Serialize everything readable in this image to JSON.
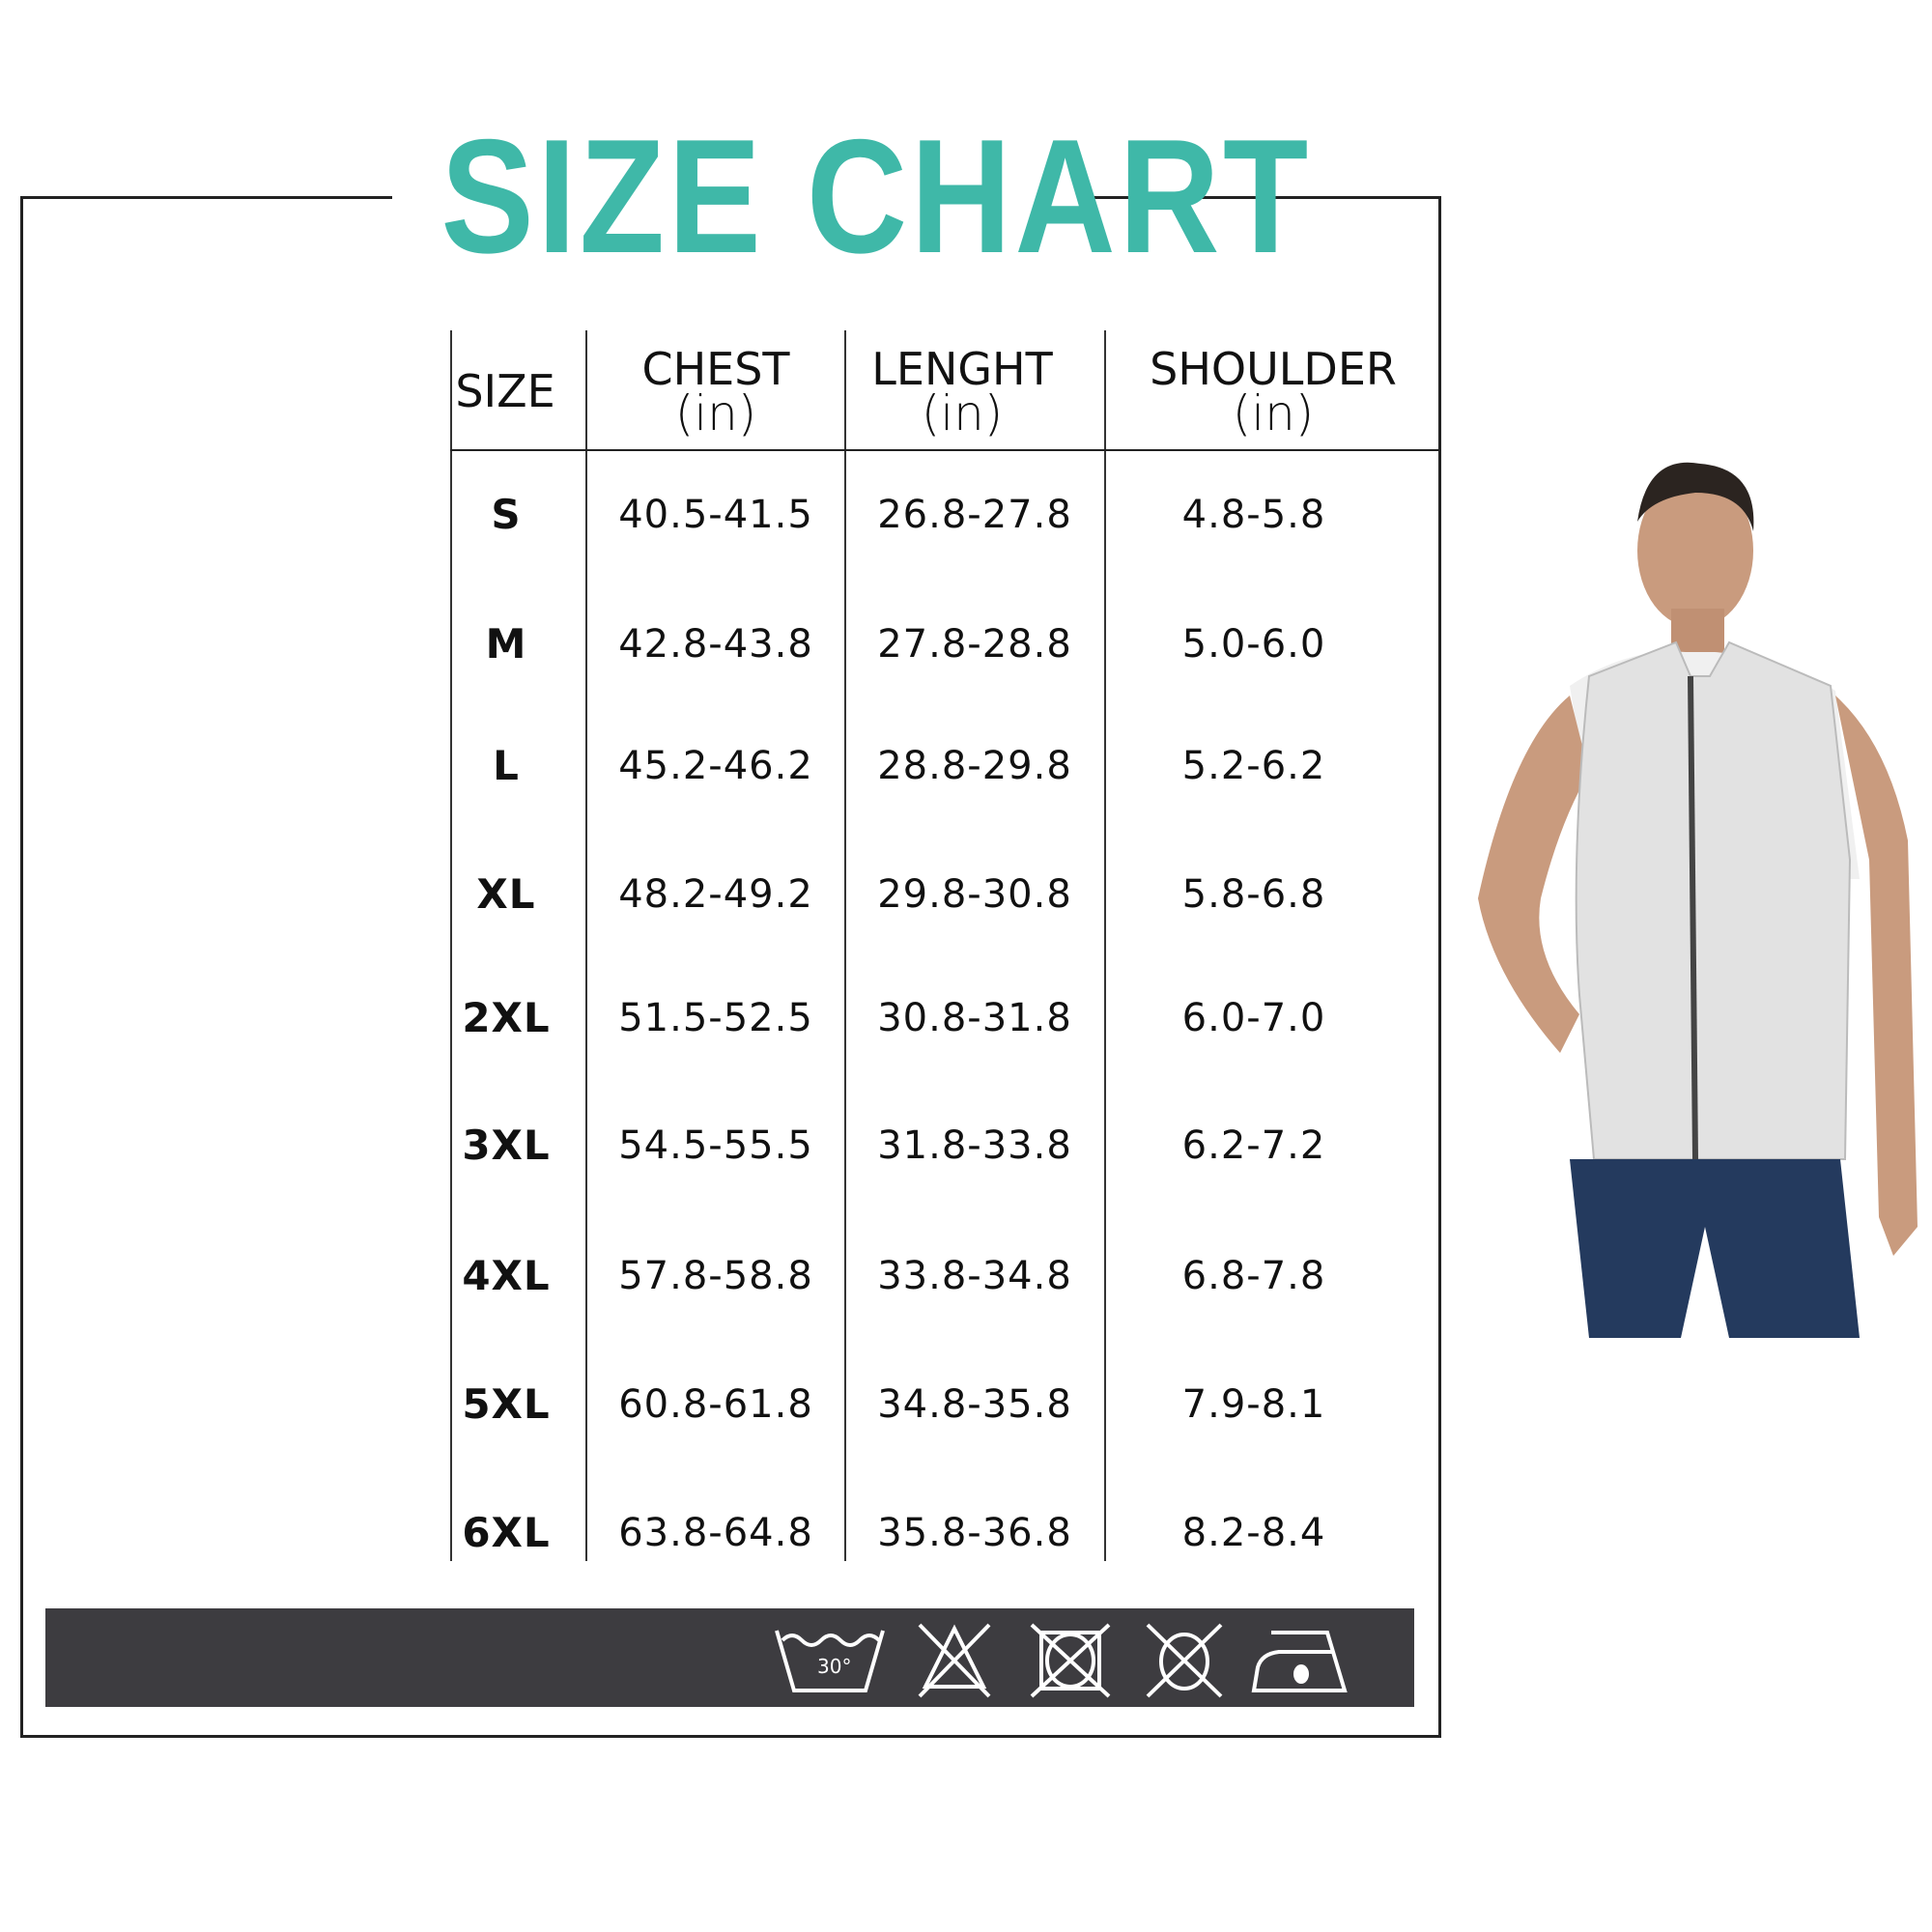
{
  "title": "SIZE CHART",
  "colors": {
    "title": "#3fb8a8",
    "care_bar": "#3d3c40"
  },
  "table": {
    "headers": [
      {
        "label": "SIZE",
        "unit": ""
      },
      {
        "label": "CHEST",
        "unit": "(in)"
      },
      {
        "label": "LENGHT",
        "unit": "(in)"
      },
      {
        "label": "SHOULDER",
        "unit": "(in)"
      }
    ],
    "rows": [
      {
        "size": "S",
        "chest": "40.5-41.5",
        "length": "26.8-27.8",
        "shoulder": "4.8-5.8"
      },
      {
        "size": "M",
        "chest": "42.8-43.8",
        "length": "27.8-28.8",
        "shoulder": "5.0-6.0"
      },
      {
        "size": "L",
        "chest": "45.2-46.2",
        "length": "28.8-29.8",
        "shoulder": "5.2-6.2"
      },
      {
        "size": "XL",
        "chest": "48.2-49.2",
        "length": "29.8-30.8",
        "shoulder": "5.8-6.8"
      },
      {
        "size": "2XL",
        "chest": "51.5-52.5",
        "length": "30.8-31.8",
        "shoulder": "6.0-7.0"
      },
      {
        "size": "3XL",
        "chest": "54.5-55.5",
        "length": "31.8-33.8",
        "shoulder": "6.2-7.2"
      },
      {
        "size": "4XL",
        "chest": "57.8-58.8",
        "length": "33.8-34.8",
        "shoulder": "6.8-7.8"
      },
      {
        "size": "5XL",
        "chest": "60.8-61.8",
        "length": "34.8-35.8",
        "shoulder": "7.9-8.1"
      },
      {
        "size": "6XL",
        "chest": "63.8-64.8",
        "length": "35.8-36.8",
        "shoulder": "8.2-8.4"
      }
    ]
  },
  "care_icons": [
    {
      "icon": "wash-30-icon",
      "label": "30°"
    },
    {
      "icon": "do-not-bleach-icon"
    },
    {
      "icon": "do-not-tumble-dry-icon"
    },
    {
      "icon": "do-not-dry-clean-icon"
    },
    {
      "icon": "iron-low-heat-icon"
    }
  ],
  "model_image": "man-wearing-light-grey-vest"
}
